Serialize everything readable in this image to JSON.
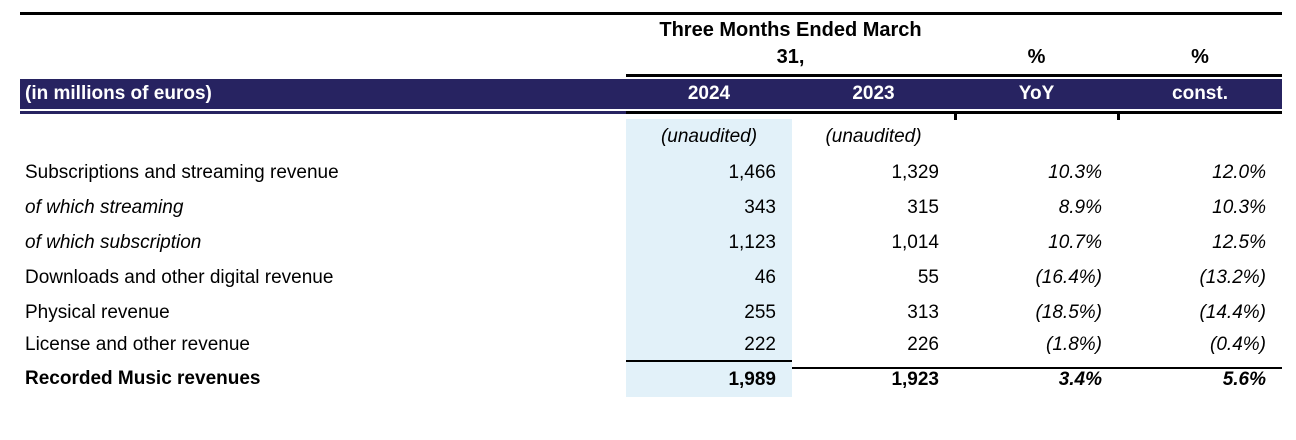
{
  "table": {
    "period_header": {
      "line1": "Three Months Ended March",
      "line2": "31,"
    },
    "pct_headers": {
      "yoy": "%",
      "const": "%"
    },
    "column_header_row": {
      "label": "(in millions of euros)",
      "col_2024": "2024",
      "col_2023": "2023",
      "col_yoy": "YoY",
      "col_const": "const."
    },
    "unaudited_row": {
      "col_2024": "(unaudited)",
      "col_2023": "(unaudited)"
    },
    "rows": [
      {
        "label": "Subscriptions and streaming revenue",
        "v2024": "1,466",
        "v2023": "1,329",
        "yoy": "10.3%",
        "const": "12.0%",
        "variant": "normal"
      },
      {
        "label": "of which streaming",
        "v2024": "343",
        "v2023": "315",
        "yoy": "8.9%",
        "const": "10.3%",
        "variant": "italic"
      },
      {
        "label": "of which subscription",
        "v2024": "1,123",
        "v2023": "1,014",
        "yoy": "10.7%",
        "const": "12.5%",
        "variant": "italic"
      },
      {
        "label": "Downloads and other digital revenue",
        "v2024": "46",
        "v2023": "55",
        "yoy": "(16.4%)",
        "const": "(13.2%)",
        "variant": "normal"
      },
      {
        "label": "Physical revenue",
        "v2024": "255",
        "v2023": "313",
        "yoy": "(18.5%)",
        "const": "(14.4%)",
        "variant": "normal"
      },
      {
        "label": "License and other revenue",
        "v2024": "222",
        "v2023": "226",
        "yoy": "(1.8%)",
        "const": "(0.4%)",
        "variant": "normal-short"
      }
    ],
    "total_row": {
      "label": "Recorded Music revenues",
      "v2024": "1,989",
      "v2023": "1,923",
      "yoy": "3.4%",
      "const": "5.6%"
    },
    "colors": {
      "header_navy": "#272361",
      "col_2024_shade": "#E2F1F9"
    }
  }
}
